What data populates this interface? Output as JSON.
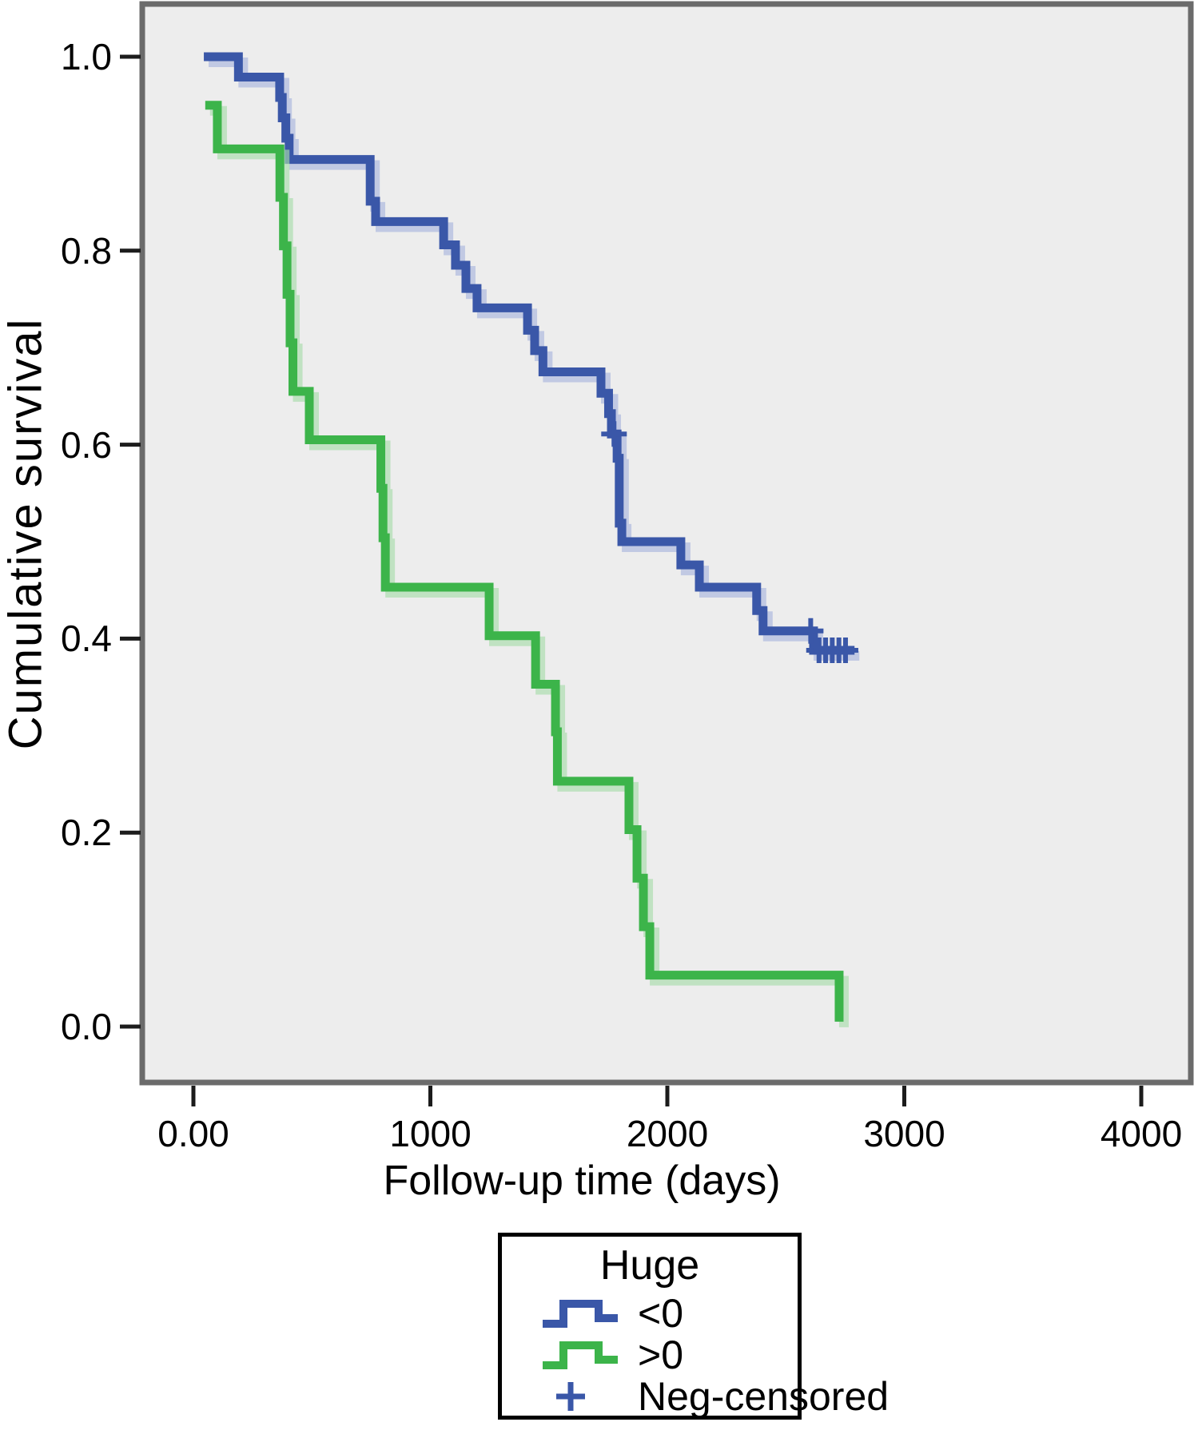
{
  "chart_data": {
    "type": "line",
    "subtype": "kaplan-meier-step-curves",
    "title": "",
    "xlabel": "Follow-up time (days)",
    "ylabel": "Cumulative survival",
    "xlim": [
      -230,
      4230
    ],
    "ylim": [
      -0.06,
      1.06
    ],
    "grid": false,
    "plot_background": "#ededed",
    "frame_color": "#6b6b6b",
    "tick_color": "#1c1c1c",
    "x_ticks": [
      {
        "label": "0.00",
        "value": 0
      },
      {
        "label": "1000",
        "value": 1000
      },
      {
        "label": "2000",
        "value": 2000
      },
      {
        "label": "3000",
        "value": 3000
      },
      {
        "label": "4000",
        "value": 4000
      }
    ],
    "y_ticks": [
      {
        "label": "1.0",
        "value": 1.0
      },
      {
        "label": "0.8",
        "value": 0.8
      },
      {
        "label": "0.6",
        "value": 0.6
      },
      {
        "label": "0.4",
        "value": 0.4
      },
      {
        "label": "0.2",
        "value": 0.2
      },
      {
        "label": "0.0",
        "value": 0.0
      }
    ],
    "legend": {
      "title": "Huge",
      "position": "bottom",
      "entries": [
        {
          "label": "<0",
          "type": "step-line",
          "color": "#3a57a8"
        },
        {
          "label": ">0",
          "type": "step-line",
          "color": "#3cb44a"
        },
        {
          "label": "Neg-censored",
          "type": "plus-marker",
          "color": "#3a57a8"
        }
      ]
    },
    "series": [
      {
        "id": "neg",
        "name": "<0",
        "color": "#3a57a8",
        "halo_color": "#a9b6dd",
        "end_day": 2790,
        "points": [
          [
            44,
            1.0
          ],
          [
            190,
            0.979
          ],
          [
            364,
            0.958
          ],
          [
            375,
            0.937
          ],
          [
            390,
            0.916
          ],
          [
            404,
            0.894
          ],
          [
            746,
            0.851
          ],
          [
            769,
            0.83
          ],
          [
            1056,
            0.806
          ],
          [
            1106,
            0.785
          ],
          [
            1150,
            0.761
          ],
          [
            1197,
            0.741
          ],
          [
            1410,
            0.718
          ],
          [
            1440,
            0.697
          ],
          [
            1475,
            0.675
          ],
          [
            1720,
            0.653
          ],
          [
            1752,
            0.632
          ],
          [
            1764,
            0.611
          ],
          [
            1788,
            0.586
          ],
          [
            1797,
            0.519
          ],
          [
            1808,
            0.5
          ],
          [
            2057,
            0.476
          ],
          [
            2135,
            0.453
          ],
          [
            2377,
            0.429
          ],
          [
            2404,
            0.408
          ],
          [
            2617,
            0.388
          ]
        ],
        "censored": [
          [
            1775,
            0.611
          ],
          [
            2605,
            0.408
          ],
          [
            2640,
            0.388
          ],
          [
            2668,
            0.388
          ],
          [
            2696,
            0.388
          ],
          [
            2724,
            0.388
          ],
          [
            2752,
            0.388
          ]
        ]
      },
      {
        "id": "pos",
        "name": ">0",
        "color": "#3cb44a",
        "halo_color": "#a7dcab",
        "end_day": 2725,
        "points": [
          [
            50,
            0.95
          ],
          [
            101,
            0.905
          ],
          [
            365,
            0.855
          ],
          [
            380,
            0.805
          ],
          [
            395,
            0.755
          ],
          [
            408,
            0.705
          ],
          [
            420,
            0.655
          ],
          [
            489,
            0.605
          ],
          [
            791,
            0.555
          ],
          [
            800,
            0.504
          ],
          [
            810,
            0.453
          ],
          [
            1248,
            0.403
          ],
          [
            1444,
            0.353
          ],
          [
            1528,
            0.304
          ],
          [
            1536,
            0.253
          ],
          [
            1838,
            0.203
          ],
          [
            1872,
            0.153
          ],
          [
            1899,
            0.103
          ],
          [
            1926,
            0.053
          ],
          [
            2725,
            0.005
          ]
        ],
        "censored": []
      }
    ]
  }
}
